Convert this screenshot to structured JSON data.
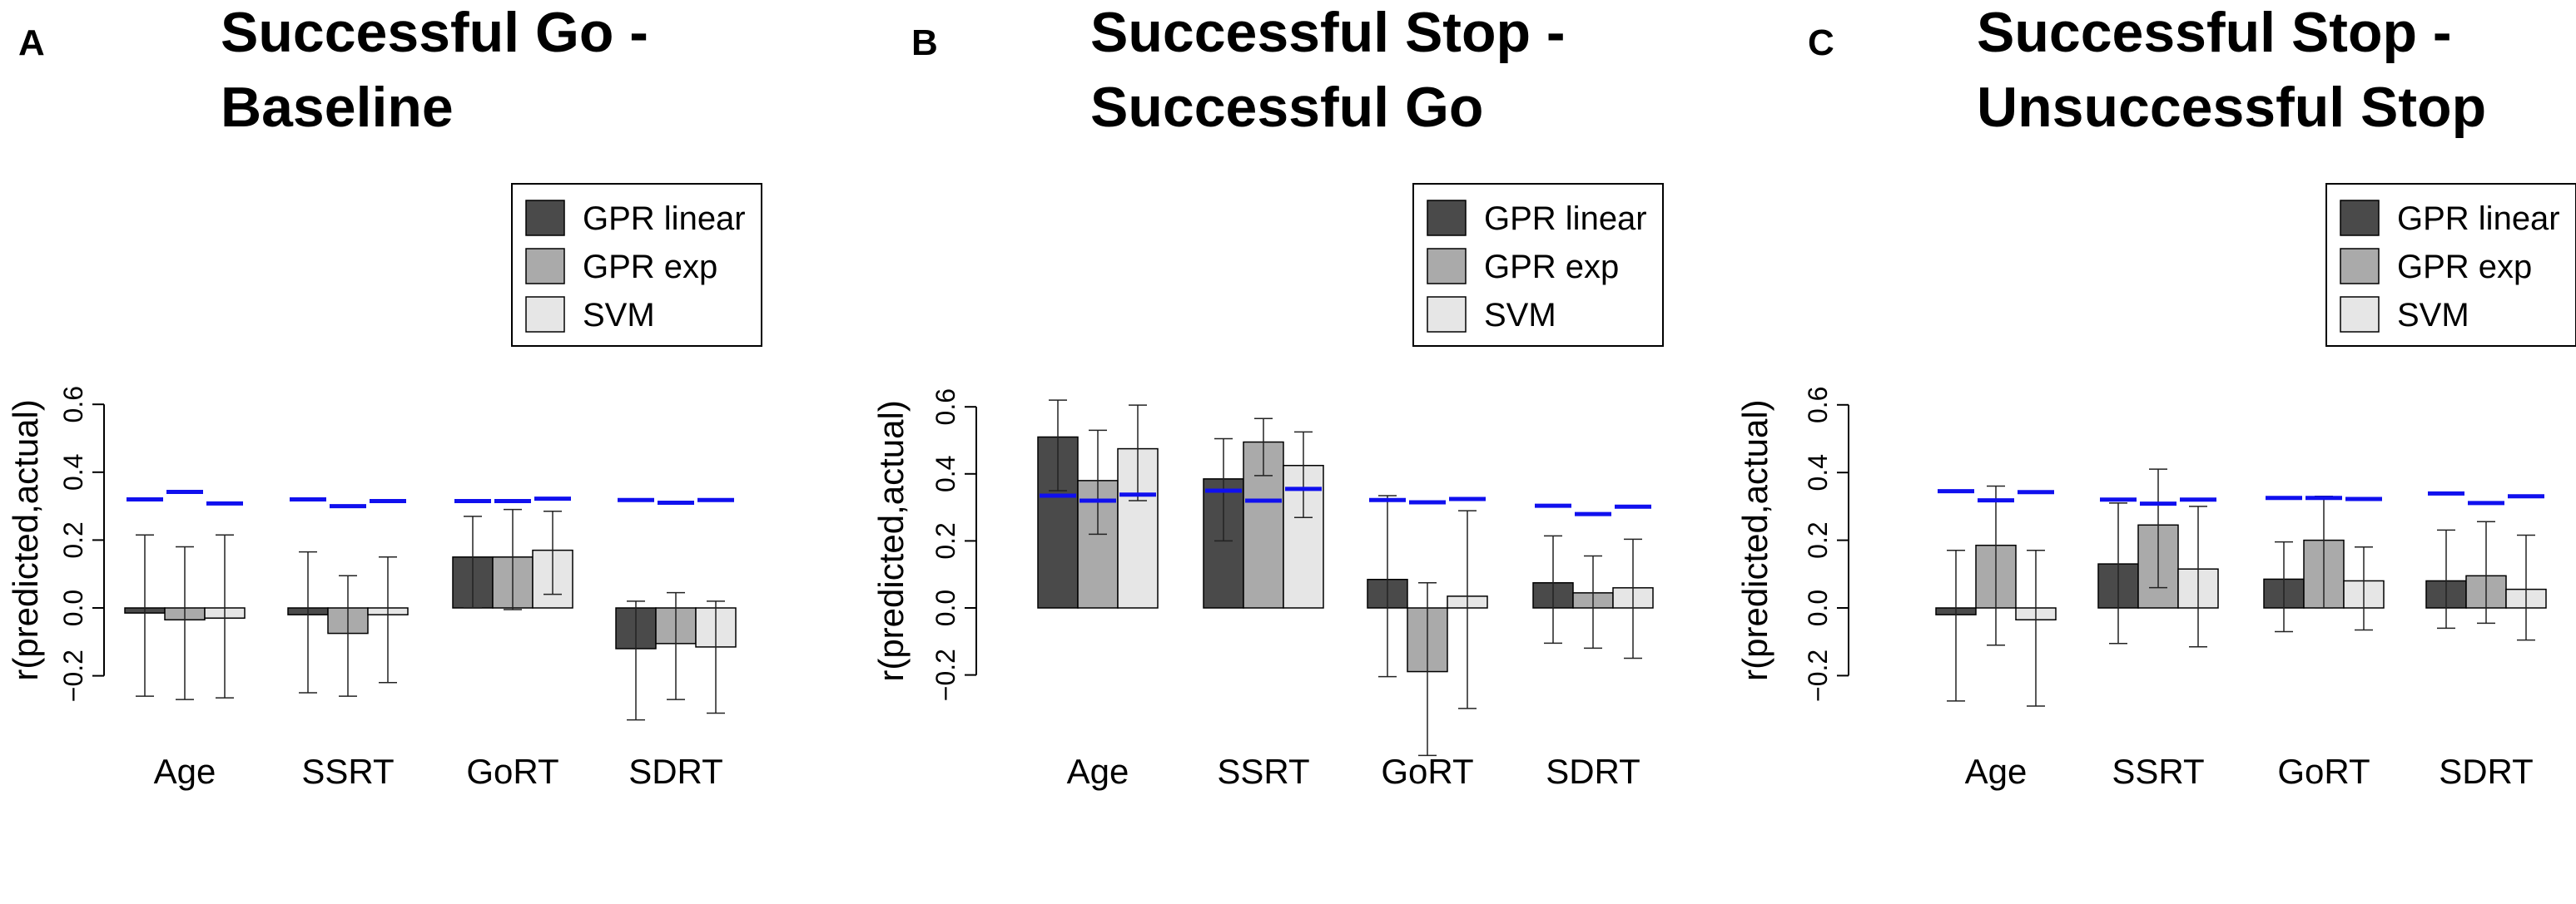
{
  "chart_data": [
    {
      "type": "bar",
      "panel": "A",
      "title_lines": [
        "Successful Go -",
        "Baseline"
      ],
      "ylabel": "r(predicted,actual)",
      "ylim": [
        -0.2,
        0.6
      ],
      "yticks": [
        -0.2,
        0.0,
        0.2,
        0.4,
        0.6
      ],
      "ytick_labels": [
        "−0.2",
        "0.0",
        "0.2",
        "0.4",
        "0.6"
      ],
      "categories": [
        "Age",
        "SSRT",
        "GoRT",
        "SDRT"
      ],
      "series": [
        {
          "name": "GPR linear",
          "color": "#4a4a4a",
          "values": [
            -0.015,
            -0.02,
            0.15,
            -0.12
          ],
          "err_low": [
            -0.26,
            -0.25,
            0.0,
            -0.33
          ],
          "err_high": [
            0.215,
            0.165,
            0.27,
            0.02
          ],
          "null": [
            0.32,
            0.32,
            0.315,
            0.318
          ]
        },
        {
          "name": "GPR exp",
          "color": "#aaaaaa",
          "values": [
            -0.035,
            -0.075,
            0.15,
            -0.105
          ],
          "err_low": [
            -0.27,
            -0.26,
            -0.005,
            -0.27
          ],
          "err_high": [
            0.18,
            0.095,
            0.29,
            0.045
          ],
          "null": [
            0.342,
            0.3,
            0.315,
            0.31
          ]
        },
        {
          "name": "SVM",
          "color": "#e6e6e6",
          "values": [
            -0.03,
            -0.02,
            0.17,
            -0.115
          ],
          "err_low": [
            -0.265,
            -0.22,
            0.04,
            -0.31
          ],
          "err_high": [
            0.215,
            0.15,
            0.285,
            0.02
          ],
          "null": [
            0.308,
            0.315,
            0.322,
            0.318
          ]
        }
      ],
      "legend": {
        "position": "top-right",
        "entries": [
          "GPR linear",
          "GPR exp",
          "SVM"
        ]
      }
    },
    {
      "type": "bar",
      "panel": "B",
      "title_lines": [
        "Successful Stop -",
        "Successful Go"
      ],
      "ylabel": "r(predicted,actual)",
      "ylim": [
        -0.2,
        0.6
      ],
      "yticks": [
        -0.2,
        0.0,
        0.2,
        0.4,
        0.6
      ],
      "ytick_labels": [
        "−0.2",
        "0.0",
        "0.2",
        "0.4",
        "0.6"
      ],
      "categories": [
        "Age",
        "SSRT",
        "GoRT",
        "SDRT"
      ],
      "series": [
        {
          "name": "GPR linear",
          "color": "#4a4a4a",
          "values": [
            0.51,
            0.385,
            0.085,
            0.075
          ],
          "err_low": [
            0.35,
            0.2,
            -0.205,
            -0.105
          ],
          "err_high": [
            0.62,
            0.505,
            0.335,
            0.215
          ],
          "null": [
            0.335,
            0.35,
            0.322,
            0.305
          ]
        },
        {
          "name": "GPR exp",
          "color": "#aaaaaa",
          "values": [
            0.38,
            0.495,
            -0.19,
            0.045
          ],
          "err_low": [
            0.22,
            0.395,
            -0.44,
            -0.12
          ],
          "err_high": [
            0.53,
            0.565,
            0.075,
            0.155
          ],
          "null": [
            0.32,
            0.32,
            0.315,
            0.28
          ]
        },
        {
          "name": "SVM",
          "color": "#e6e6e6",
          "values": [
            0.475,
            0.425,
            0.035,
            0.06
          ],
          "err_low": [
            0.32,
            0.27,
            -0.3,
            -0.15
          ],
          "err_high": [
            0.605,
            0.525,
            0.29,
            0.205
          ],
          "null": [
            0.338,
            0.355,
            0.325,
            0.302
          ]
        }
      ],
      "legend": {
        "position": "top-right",
        "entries": [
          "GPR linear",
          "GPR exp",
          "SVM"
        ]
      }
    },
    {
      "type": "bar",
      "panel": "C",
      "title_lines": [
        "Successful Stop -",
        "Unsuccessful Stop"
      ],
      "ylabel": "r(predicted,actual)",
      "ylim": [
        -0.2,
        0.6
      ],
      "yticks": [
        -0.2,
        0.0,
        0.2,
        0.4,
        0.6
      ],
      "ytick_labels": [
        "−0.2",
        "0.0",
        "0.2",
        "0.4",
        "0.6"
      ],
      "categories": [
        "Age",
        "SSRT",
        "GoRT",
        "SDRT"
      ],
      "series": [
        {
          "name": "GPR linear",
          "color": "#4a4a4a",
          "values": [
            -0.02,
            0.13,
            0.085,
            0.08
          ],
          "err_low": [
            -0.275,
            -0.105,
            -0.07,
            -0.06
          ],
          "err_high": [
            0.17,
            0.31,
            0.195,
            0.23
          ],
          "null": [
            0.345,
            0.32,
            0.325,
            0.338
          ]
        },
        {
          "name": "GPR exp",
          "color": "#aaaaaa",
          "values": [
            0.185,
            0.245,
            0.2,
            0.095
          ],
          "err_low": [
            -0.11,
            0.06,
            0.0,
            -0.045
          ],
          "err_high": [
            0.36,
            0.41,
            0.33,
            0.255
          ],
          "null": [
            0.318,
            0.308,
            0.325,
            0.31
          ]
        },
        {
          "name": "SVM",
          "color": "#e6e6e6",
          "values": [
            -0.035,
            0.115,
            0.08,
            0.055
          ],
          "err_low": [
            -0.29,
            -0.115,
            -0.065,
            -0.095
          ],
          "err_high": [
            0.17,
            0.3,
            0.18,
            0.215
          ],
          "null": [
            0.342,
            0.32,
            0.322,
            0.33
          ]
        }
      ],
      "legend": {
        "position": "top-right",
        "entries": [
          "GPR linear",
          "GPR exp",
          "SVM"
        ]
      }
    }
  ]
}
